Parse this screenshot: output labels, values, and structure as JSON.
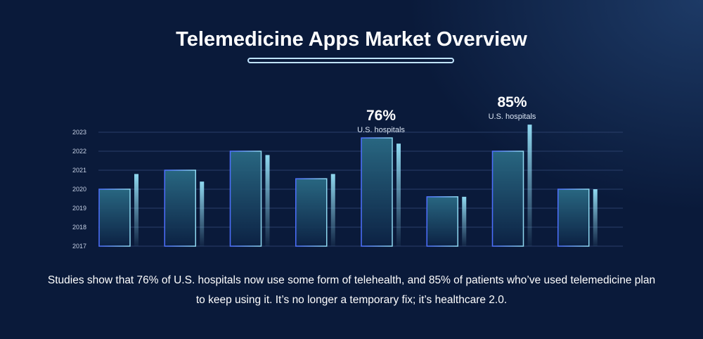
{
  "title": "Telemedicine Apps Market Overview",
  "caption": "Studies show that 76% of U.S. hospitals now use some form of telehealth, and 85% of patients who’ve used telemedicine plan to keep using it. It’s no longer a temporary fix; it’s healthcare 2.0.",
  "colors": {
    "background": "#0a1a3a",
    "bar_fill_top": "#2a6b85",
    "bar_border": "#4d6fff",
    "bar_accent": "#8fd8f0",
    "grid": "#2a3f6a",
    "tick_label": "#c6d0e4"
  },
  "chart_data": {
    "type": "bar",
    "title": "Telemedicine Apps Market Overview",
    "xlabel": "",
    "ylabel": "",
    "y_ticks": [
      "2017",
      "2018",
      "2019",
      "2020",
      "2021",
      "2022",
      "2023"
    ],
    "ylim": [
      2017,
      2023.5
    ],
    "grid": true,
    "series": [
      {
        "values": [
          2020,
          2021,
          2022,
          2020.55,
          2022.7,
          2019.6,
          2022,
          2020
        ]
      },
      {
        "values": [
          2020.8,
          2020.4,
          2021.8,
          2020.8,
          2022.4,
          2019.6,
          2023.4,
          2020
        ]
      }
    ],
    "annotations": [
      {
        "group": 4,
        "value": "76%",
        "label": "U.S. hospitals"
      },
      {
        "group": 6,
        "value": "85%",
        "label": "U.S. hospitals"
      }
    ]
  }
}
